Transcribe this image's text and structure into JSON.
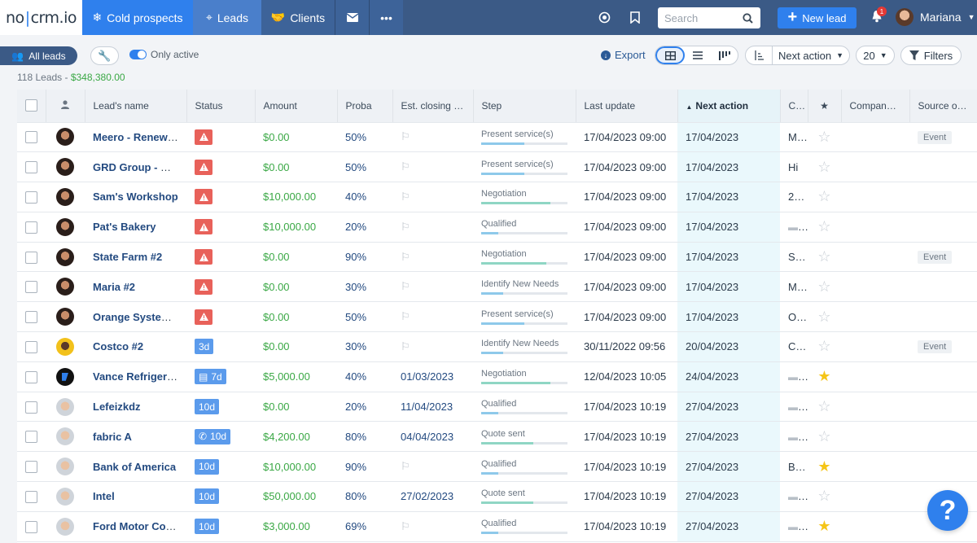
{
  "navbar": {
    "logo": "nocrm.io",
    "logo_left": "no",
    "logo_right": "crm.io",
    "tabs": [
      {
        "label": "Cold prospects",
        "icon": "snowflake-icon"
      },
      {
        "label": "Leads",
        "icon": "crosshair-icon"
      },
      {
        "label": "Clients",
        "icon": "handshake-icon"
      }
    ],
    "search_placeholder": "Search",
    "new_lead_label": "New lead",
    "notification_count": "1",
    "user_name": "Mariana"
  },
  "toolbar": {
    "all_leads_label": "All leads",
    "only_active_label": "Only active",
    "export_label": "Export",
    "sort_label": "Next action",
    "per_page": "20",
    "filters_label": "Filters",
    "lead_count": "118 Leads - ",
    "lead_total": "$348,380.00"
  },
  "table": {
    "headers": {
      "name": "Lead's name",
      "status": "Status",
      "amount": "Amount",
      "proba": "Proba",
      "closing": "Est. closing d...",
      "step": "Step",
      "last_update": "Last update",
      "next_action": "Next action",
      "c": "C...",
      "company": "Company ...",
      "source": "Source of ..."
    },
    "rows": [
      {
        "avatar": "face",
        "name": "Meero - Renewa...",
        "status_type": "alert",
        "status_text": "",
        "status_icon": "",
        "amount": "$0.00",
        "proba": "50%",
        "closing": "",
        "step": "Present service(s)",
        "step_progress": 0.5,
        "step_color": "#8ec9ea",
        "last_update": "17/04/2023 09:00",
        "next_action": "17/04/2023",
        "c": "M...",
        "c_folder": false,
        "starred": false,
        "source": "Event"
      },
      {
        "avatar": "face",
        "name": "GRD Group - Re...",
        "status_type": "alert",
        "status_text": "",
        "status_icon": "",
        "amount": "$0.00",
        "proba": "50%",
        "closing": "",
        "step": "Present service(s)",
        "step_progress": 0.5,
        "step_color": "#8ec9ea",
        "last_update": "17/04/2023 09:00",
        "next_action": "17/04/2023",
        "c": "Hi",
        "c_folder": false,
        "starred": false,
        "source": ""
      },
      {
        "avatar": "face",
        "name": "Sam's Workshop",
        "status_type": "alert",
        "status_text": "",
        "status_icon": "",
        "amount": "$10,000.00",
        "proba": "40%",
        "closing": "",
        "step": "Negotiation",
        "step_progress": 0.8,
        "step_color": "#8fd6c4",
        "last_update": "17/04/2023 09:00",
        "next_action": "17/04/2023",
        "c": "2...",
        "c_folder": false,
        "starred": false,
        "source": ""
      },
      {
        "avatar": "face",
        "name": "Pat's Bakery",
        "status_type": "alert",
        "status_text": "",
        "status_icon": "",
        "amount": "$10,000.00",
        "proba": "20%",
        "closing": "",
        "step": "Qualified",
        "step_progress": 0.2,
        "step_color": "#8ec9ea",
        "last_update": "17/04/2023 09:00",
        "next_action": "17/04/2023",
        "c": "",
        "c_folder": true,
        "starred": false,
        "source": ""
      },
      {
        "avatar": "face",
        "name": "State Farm #2",
        "status_type": "alert",
        "status_text": "",
        "status_icon": "",
        "amount": "$0.00",
        "proba": "90%",
        "closing": "",
        "step": "Negotiation",
        "step_progress": 0.75,
        "step_color": "#8fd6c4",
        "last_update": "17/04/2023 09:00",
        "next_action": "17/04/2023",
        "c": "S...",
        "c_folder": false,
        "starred": false,
        "source": "Event"
      },
      {
        "avatar": "face",
        "name": "Maria #2",
        "status_type": "alert",
        "status_text": "",
        "status_icon": "",
        "amount": "$0.00",
        "proba": "30%",
        "closing": "",
        "step": "Identify New Needs",
        "step_progress": 0.25,
        "step_color": "#8ec9ea",
        "last_update": "17/04/2023 09:00",
        "next_action": "17/04/2023",
        "c": "M...",
        "c_folder": false,
        "starred": false,
        "source": ""
      },
      {
        "avatar": "face",
        "name": "Orange System...",
        "status_type": "alert",
        "status_text": "",
        "status_icon": "",
        "amount": "$0.00",
        "proba": "50%",
        "closing": "",
        "step": "Present service(s)",
        "step_progress": 0.5,
        "step_color": "#8ec9ea",
        "last_update": "17/04/2023 09:00",
        "next_action": "17/04/2023",
        "c": "O...",
        "c_folder": false,
        "starred": false,
        "source": ""
      },
      {
        "avatar": "yellow",
        "name": "Costco #2",
        "status_type": "days",
        "status_text": "3d",
        "status_icon": "",
        "amount": "$0.00",
        "proba": "30%",
        "closing": "",
        "step": "Identify New Needs",
        "step_progress": 0.25,
        "step_color": "#8ec9ea",
        "last_update": "30/11/2022 09:56",
        "next_action": "20/04/2023",
        "c": "C...",
        "c_folder": false,
        "starred": false,
        "source": "Event"
      },
      {
        "avatar": "dark",
        "name": "Vance Refrigera...",
        "status_type": "days",
        "status_text": "7d",
        "status_icon": "doc",
        "amount": "$5,000.00",
        "proba": "40%",
        "closing": "01/03/2023",
        "step": "Negotiation",
        "step_progress": 0.8,
        "step_color": "#8fd6c4",
        "last_update": "12/04/2023 10:05",
        "next_action": "24/04/2023",
        "c": "",
        "c_folder": true,
        "starred": true,
        "source": ""
      },
      {
        "avatar": "light",
        "name": "Lefeizkdz",
        "status_type": "days",
        "status_text": "10d",
        "status_icon": "",
        "amount": "$0.00",
        "proba": "20%",
        "closing": "11/04/2023",
        "step": "Qualified",
        "step_progress": 0.2,
        "step_color": "#8ec9ea",
        "last_update": "17/04/2023 10:19",
        "next_action": "27/04/2023",
        "c": "",
        "c_folder": true,
        "starred": false,
        "source": ""
      },
      {
        "avatar": "light",
        "name": "fabric A",
        "status_type": "days",
        "status_text": "10d",
        "status_icon": "phone",
        "amount": "$4,200.00",
        "proba": "80%",
        "closing": "04/04/2023",
        "step": "Quote sent",
        "step_progress": 0.6,
        "step_color": "#8fd6c4",
        "last_update": "17/04/2023 10:19",
        "next_action": "27/04/2023",
        "c": "",
        "c_folder": true,
        "starred": false,
        "source": ""
      },
      {
        "avatar": "light",
        "name": "Bank of America",
        "status_type": "days",
        "status_text": "10d",
        "status_icon": "",
        "amount": "$10,000.00",
        "proba": "90%",
        "closing": "",
        "step": "Qualified",
        "step_progress": 0.2,
        "step_color": "#8ec9ea",
        "last_update": "17/04/2023 10:19",
        "next_action": "27/04/2023",
        "c": "B...",
        "c_folder": false,
        "starred": true,
        "source": ""
      },
      {
        "avatar": "light",
        "name": "Intel",
        "status_type": "days",
        "status_text": "10d",
        "status_icon": "",
        "amount": "$50,000.00",
        "proba": "80%",
        "closing": "27/02/2023",
        "step": "Quote sent",
        "step_progress": 0.6,
        "step_color": "#8fd6c4",
        "last_update": "17/04/2023 10:19",
        "next_action": "27/04/2023",
        "c": "",
        "c_folder": true,
        "starred": false,
        "source": ""
      },
      {
        "avatar": "light",
        "name": "Ford Motor Com...",
        "status_type": "days",
        "status_text": "10d",
        "status_icon": "",
        "amount": "$3,000.00",
        "proba": "69%",
        "closing": "",
        "step": "Qualified",
        "step_progress": 0.2,
        "step_color": "#8ec9ea",
        "last_update": "17/04/2023 10:19",
        "next_action": "27/04/2023",
        "c": "",
        "c_folder": true,
        "starred": true,
        "source": ""
      }
    ]
  },
  "help_label": "?"
}
